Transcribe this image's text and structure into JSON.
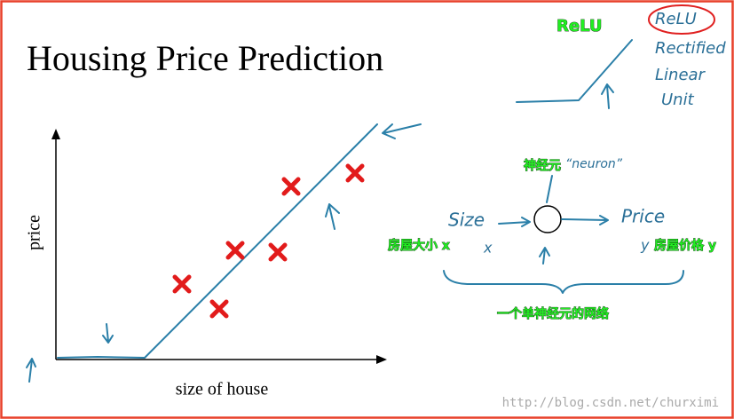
{
  "slide": {
    "title": "Housing Price Prediction",
    "axis": {
      "y_label": "price",
      "x_label": "size of house"
    }
  },
  "relu": {
    "label": "ReLU",
    "notes": [
      "ReLU",
      "Rectified",
      "Linear",
      "Unit"
    ]
  },
  "neuron_diagram": {
    "caption": "神经元",
    "handwritten_caption": "“neuron”",
    "input": "Size",
    "output": "Price",
    "input_note": "房屋大小 x",
    "input_var": "x",
    "output_var": "y",
    "output_note": "房屋价格 y",
    "network_caption": "一个单神经元的网络"
  },
  "watermark": "http://blog.csdn.net/churximi"
}
